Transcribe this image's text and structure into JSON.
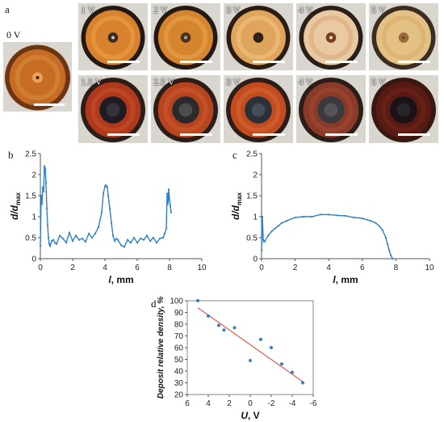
{
  "panel_letters": {
    "a": "a",
    "b": "b",
    "c": "c",
    "d": "d"
  },
  "photos": {
    "zero": {
      "label": "0 V",
      "rim": "#6e3512",
      "body": "#c76c24",
      "center": "#e9a35a",
      "ring": "#d48a3c"
    },
    "row1": [
      {
        "label": "1 V",
        "rim": "#241812",
        "body": "#d9822e",
        "ring": "#e9a048",
        "center": "#3a2a20",
        "dot": "#f2ede0"
      },
      {
        "label": "2 V",
        "rim": "#241812",
        "body": "#d6852f",
        "ring": "#e8a34e",
        "center": "#4a3322",
        "dot": "#cfc2a6"
      },
      {
        "label": "3 V",
        "rim": "#2a1c12",
        "body": "#e0a55c",
        "ring": "#f0c27e",
        "center": "#2e2018",
        "dot": "#3a2a1e"
      },
      {
        "label": "4 V",
        "rim": "#2a1f18",
        "body": "#e8c9a2",
        "ring": "#d9a878",
        "center": "#7a3c20",
        "dot": "#ffffff"
      },
      {
        "label": "5 V",
        "rim": "#3a2c20",
        "body": "#e3c184",
        "ring": "#d7ad6a",
        "center": "#9a6a3a",
        "dot": "#6a4020"
      }
    ],
    "row2": [
      {
        "label": "1.5 V",
        "rim": "#2b1d17",
        "body": "#b0381c",
        "ring": "#c4502a",
        "center": "#1e1c22",
        "dot": "#3a3a42"
      },
      {
        "label": "2.5 V",
        "rim": "#2b1d17",
        "body": "#b8441f",
        "ring": "#c85a2e",
        "center": "#2a2a2c",
        "dot": "#555"
      },
      {
        "label": "3 V",
        "rim": "#2b1d17",
        "body": "#c24c20",
        "ring": "#d46430",
        "center": "#2a3038",
        "dot": "#4a5560"
      },
      {
        "label": "4 V",
        "rim": "#2b1d17",
        "body": "#8a3a28",
        "ring": "#a04a30",
        "center": "#3a3a3e",
        "dot": "#5a5a60"
      },
      {
        "label": "5 V",
        "rim": "#3a1812",
        "body": "#5a1a14",
        "ring": "#6e2418",
        "center": "#1a1216",
        "dot": "#2a2a30"
      }
    ]
  },
  "chart_data": [
    {
      "id": "b",
      "type": "line",
      "xlabel": "l, mm",
      "ylabel": "d/d_max",
      "xlim": [
        0,
        10
      ],
      "ylim": [
        0,
        2.5
      ],
      "xticks": [
        0,
        2,
        4,
        6,
        8,
        10
      ],
      "yticks": [
        0,
        0.5,
        1,
        1.5,
        2,
        2.5
      ],
      "series_color": "#2f7fc4",
      "x": [
        0.0,
        0.05,
        0.1,
        0.15,
        0.2,
        0.25,
        0.3,
        0.35,
        0.4,
        0.45,
        0.5,
        0.55,
        0.6,
        0.7,
        0.8,
        0.9,
        1.0,
        1.2,
        1.4,
        1.6,
        1.8,
        2.0,
        2.2,
        2.4,
        2.6,
        2.8,
        3.0,
        3.2,
        3.4,
        3.6,
        3.8,
        3.9,
        4.0,
        4.05,
        4.1,
        4.15,
        4.2,
        4.3,
        4.4,
        4.5,
        4.6,
        4.7,
        4.8,
        5.0,
        5.2,
        5.4,
        5.6,
        5.8,
        6.0,
        6.2,
        6.4,
        6.6,
        6.8,
        7.0,
        7.2,
        7.4,
        7.6,
        7.7,
        7.8,
        7.85,
        7.9,
        7.95,
        8.0,
        8.05,
        8.1
      ],
      "values": [
        0.3,
        1.5,
        1.3,
        1.7,
        1.6,
        2.2,
        2.15,
        1.8,
        1.2,
        0.8,
        0.5,
        0.35,
        0.3,
        0.42,
        0.45,
        0.38,
        0.35,
        0.55,
        0.48,
        0.38,
        0.62,
        0.42,
        0.55,
        0.45,
        0.48,
        0.4,
        0.6,
        0.5,
        0.6,
        0.75,
        1.1,
        1.55,
        1.72,
        1.75,
        1.72,
        1.7,
        1.5,
        1.2,
        0.85,
        0.55,
        0.42,
        0.48,
        0.45,
        0.32,
        0.28,
        0.45,
        0.38,
        0.5,
        0.38,
        0.48,
        0.45,
        0.55,
        0.42,
        0.5,
        0.38,
        0.48,
        0.5,
        0.6,
        0.72,
        1.55,
        1.3,
        1.65,
        1.4,
        1.25,
        1.1
      ]
    },
    {
      "id": "c",
      "type": "line",
      "xlabel": "l, mm",
      "ylabel": "d/d_max",
      "xlim": [
        0,
        10
      ],
      "ylim": [
        0,
        2.5
      ],
      "xticks": [
        0,
        2,
        4,
        6,
        8,
        10
      ],
      "yticks": [
        0,
        0.5,
        1,
        1.5,
        2,
        2.5
      ],
      "series_color": "#2f7fc4",
      "x": [
        0.0,
        0.05,
        0.1,
        0.15,
        0.2,
        0.4,
        0.6,
        0.8,
        1.0,
        1.2,
        1.5,
        2.0,
        2.5,
        3.0,
        3.5,
        4.0,
        4.5,
        5.0,
        5.5,
        6.0,
        6.5,
        6.8,
        7.0,
        7.2,
        7.4,
        7.5,
        7.6,
        7.7,
        7.8
      ],
      "values": [
        0.2,
        1.0,
        0.45,
        0.4,
        0.42,
        0.55,
        0.65,
        0.72,
        0.78,
        0.85,
        0.9,
        0.98,
        1.0,
        1.0,
        1.05,
        1.05,
        1.03,
        1.02,
        0.98,
        0.96,
        0.9,
        0.85,
        0.78,
        0.68,
        0.5,
        0.35,
        0.2,
        0.08,
        0.0
      ]
    },
    {
      "id": "d",
      "type": "scatter",
      "xlabel": "U, V",
      "ylabel": "Deposit relative density, %",
      "xlim": [
        6,
        -6
      ],
      "ylim": [
        20,
        100
      ],
      "xticks": [
        6,
        4,
        2,
        0,
        -2,
        -4,
        -6
      ],
      "yticks": [
        20,
        30,
        40,
        50,
        60,
        70,
        80,
        90,
        100
      ],
      "point_color": "#2f7fc4",
      "trend_color": "#e0403a",
      "points": [
        {
          "x": 5,
          "y": 100
        },
        {
          "x": 4,
          "y": 87
        },
        {
          "x": 3,
          "y": 79
        },
        {
          "x": 2.5,
          "y": 75
        },
        {
          "x": 1.5,
          "y": 77
        },
        {
          "x": 0,
          "y": 49
        },
        {
          "x": -1,
          "y": 67
        },
        {
          "x": -2,
          "y": 60
        },
        {
          "x": -3,
          "y": 46
        },
        {
          "x": -4,
          "y": 39
        },
        {
          "x": -5,
          "y": 30
        }
      ],
      "trend": {
        "x": [
          5,
          -5
        ],
        "y": [
          94,
          31
        ]
      }
    }
  ]
}
